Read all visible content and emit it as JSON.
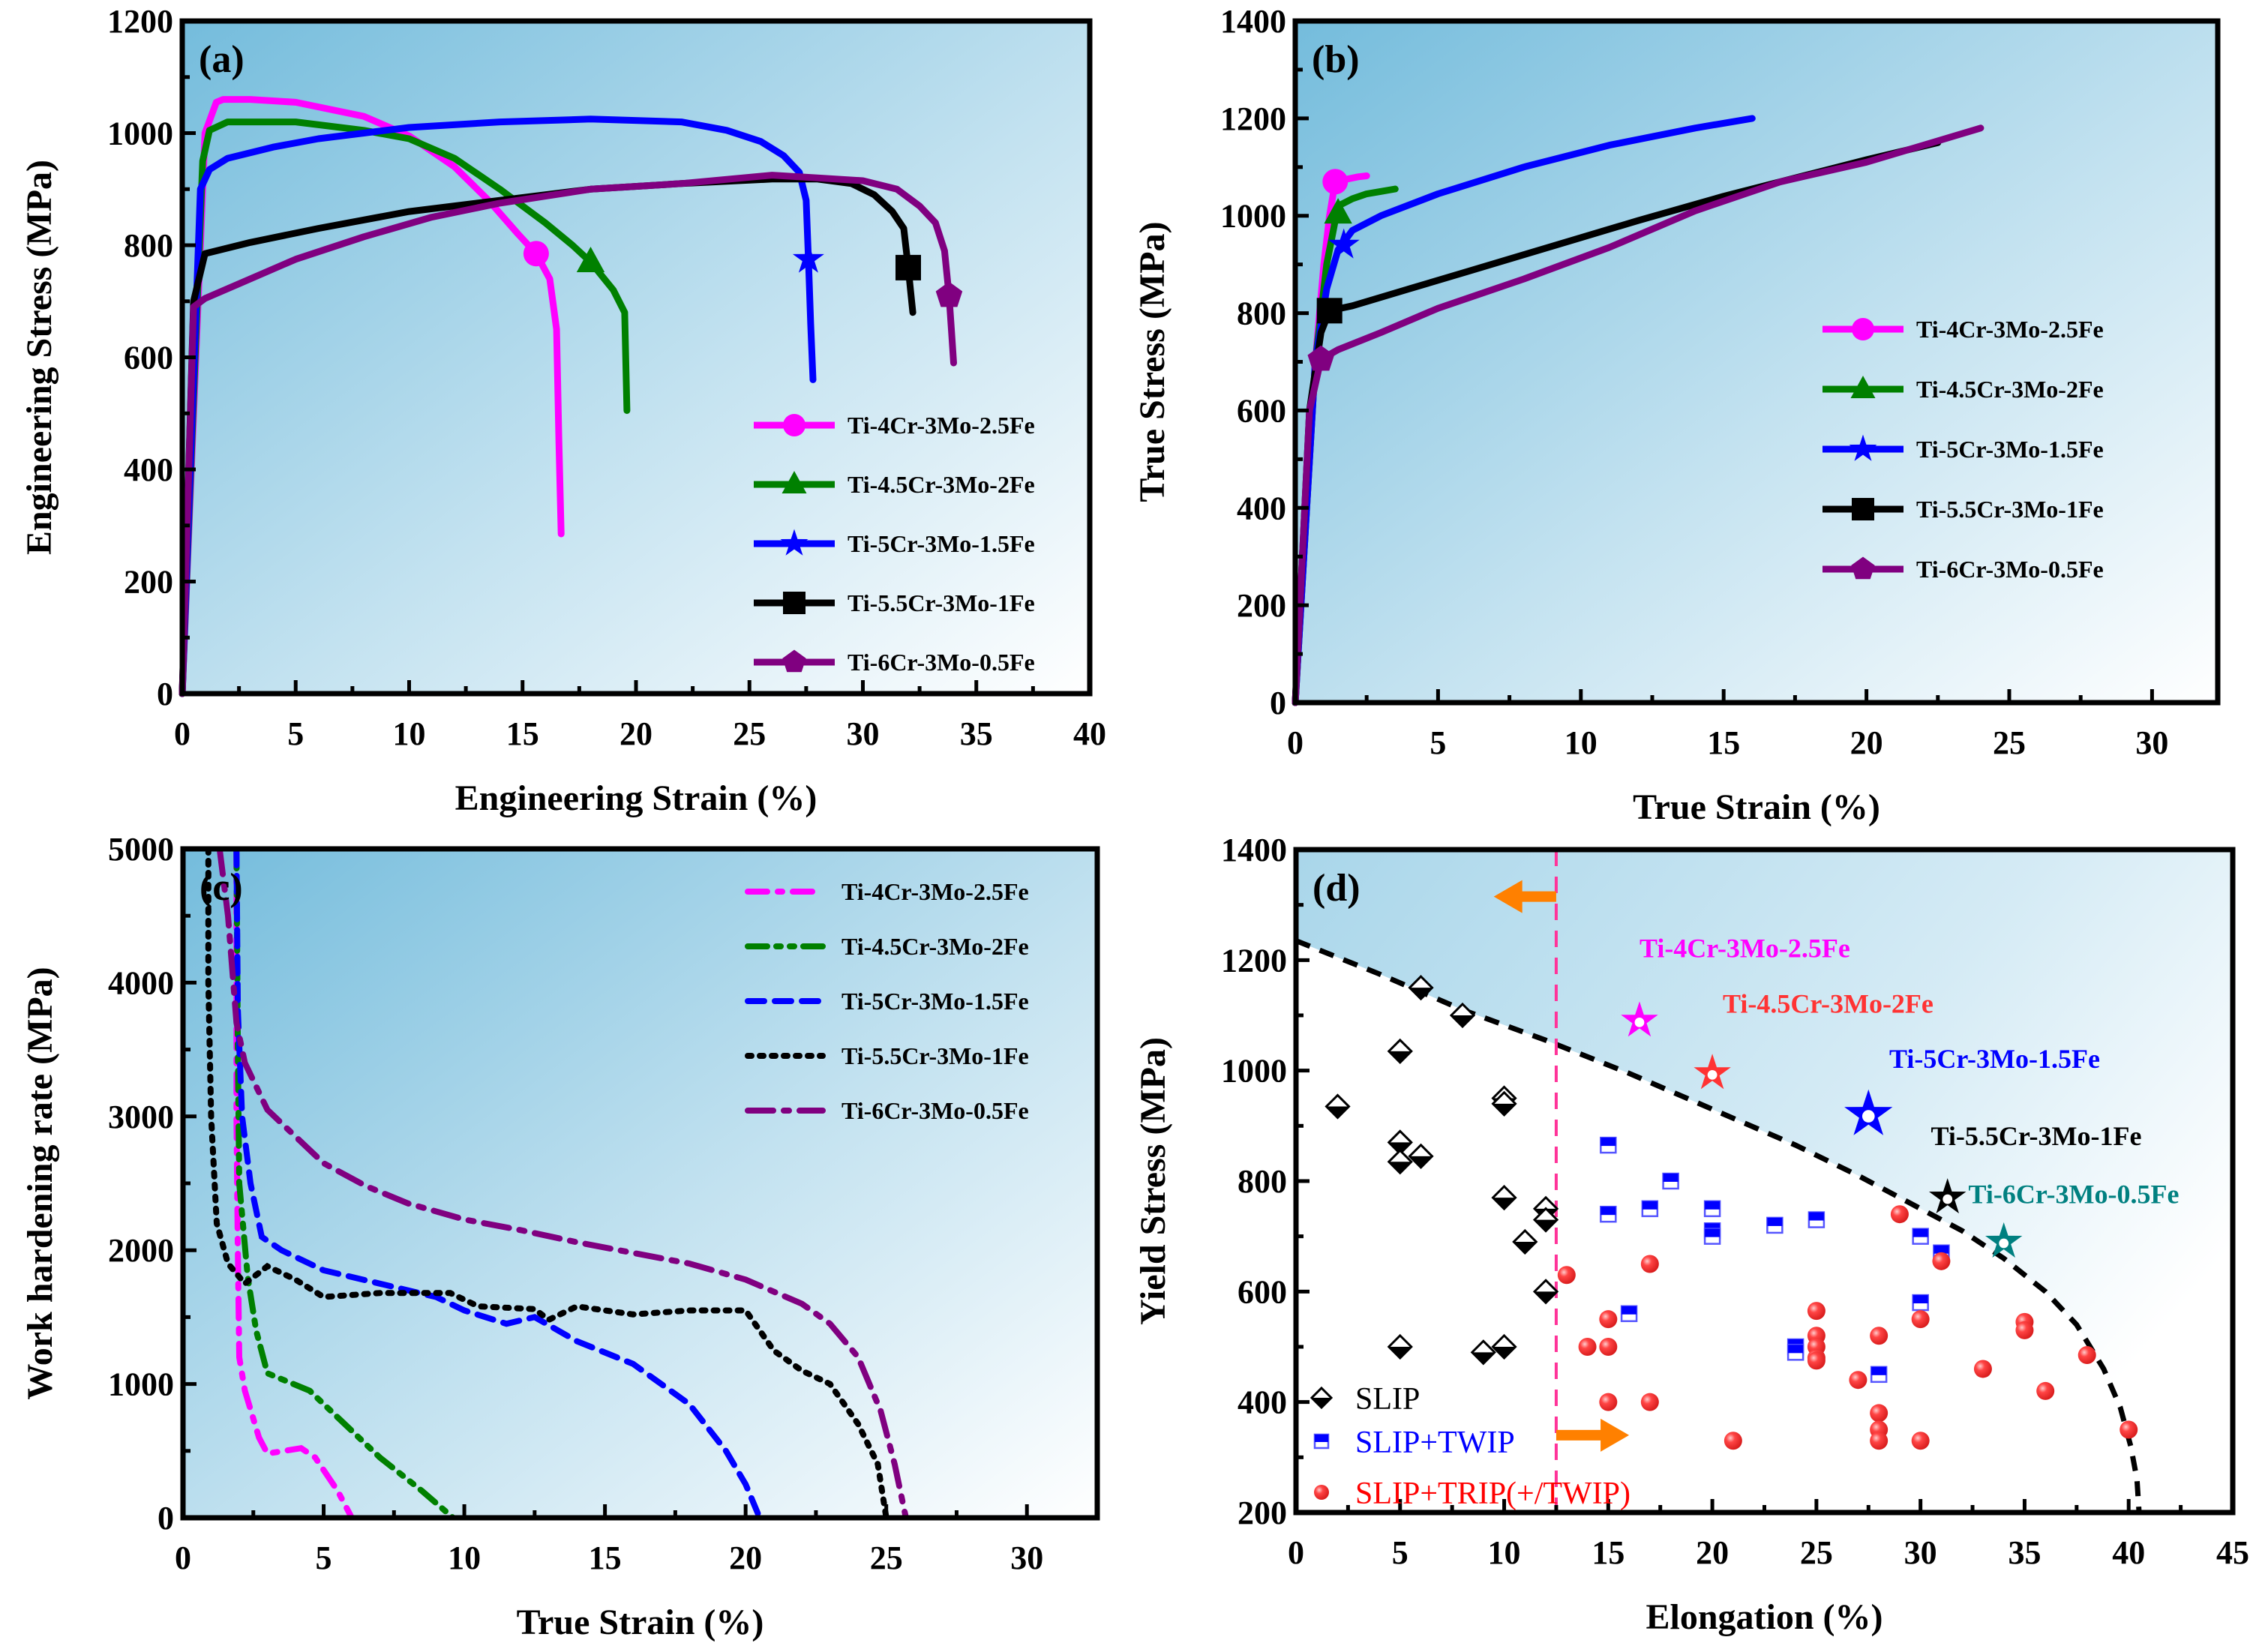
{
  "figure": {
    "colors": {
      "Ti-4Cr-3Mo-2.5Fe": "#ff00ff",
      "Ti-4.5Cr-3Mo-2Fe": "#008000",
      "Ti-5Cr-3Mo-1.5Fe": "#0000ff",
      "Ti-5.5Cr-3Mo-1Fe": "#000000",
      "Ti-6Cr-3Mo-0.5Fe": "#800080",
      "bg_dark": "#7bbfdc",
      "bg_light": "#ffffff",
      "slip": "#000000",
      "slip_twip": "#0000ff",
      "slip_trip": "#ff3333",
      "arrow": "#ff8000",
      "vline": "#ff3399"
    }
  },
  "chart_data": [
    {
      "id": "a",
      "panel_label": "(a)",
      "type": "line",
      "title": "",
      "xlabel": "Engineering Strain (%)",
      "ylabel": "Engineering Stress (MPa)",
      "xlim": [
        0,
        40
      ],
      "ylim": [
        0,
        1200
      ],
      "xticks": [
        0,
        5,
        10,
        15,
        20,
        25,
        30,
        35,
        40
      ],
      "yticks": [
        0,
        200,
        400,
        600,
        800,
        1000,
        1200
      ],
      "grid": false,
      "legend_position": "bottom-right",
      "series": [
        {
          "name": "Ti-4Cr-3Mo-2.5Fe",
          "marker": "circle",
          "marker_at": [
            15.6,
            785
          ],
          "x": [
            0,
            1.0,
            1.5,
            1.8,
            3,
            5,
            8,
            10,
            12,
            13.5,
            14.8,
            15.6,
            16.2,
            16.5,
            16.6,
            16.7
          ],
          "y": [
            0,
            1000,
            1055,
            1060,
            1060,
            1055,
            1030,
            995,
            940,
            880,
            820,
            785,
            740,
            650,
            450,
            285
          ]
        },
        {
          "name": "Ti-4.5Cr-3Mo-2Fe",
          "marker": "triangle",
          "marker_at": [
            18.0,
            770
          ],
          "x": [
            0,
            0.9,
            1.2,
            2.0,
            3,
            5,
            8,
            10,
            12,
            14,
            16,
            17.2,
            18.0,
            19.0,
            19.5,
            19.6
          ],
          "y": [
            0,
            950,
            1005,
            1020,
            1020,
            1020,
            1005,
            990,
            955,
            900,
            840,
            800,
            770,
            720,
            680,
            505
          ]
        },
        {
          "name": "Ti-5Cr-3Mo-1.5Fe",
          "marker": "star",
          "marker_at": [
            27.6,
            775
          ],
          "x": [
            0,
            0.8,
            1.2,
            2,
            4,
            6,
            8,
            10,
            14,
            18,
            22,
            24,
            25.5,
            26.5,
            27.2,
            27.5,
            27.6,
            27.7,
            27.8
          ],
          "y": [
            0,
            900,
            935,
            955,
            975,
            990,
            1000,
            1010,
            1020,
            1025,
            1020,
            1005,
            985,
            960,
            930,
            880,
            775,
            660,
            560
          ]
        },
        {
          "name": "Ti-5.5Cr-3Mo-1Fe",
          "marker": "square",
          "marker_at": [
            32.0,
            760
          ],
          "x": [
            0,
            0.5,
            1.0,
            3,
            6,
            10,
            14,
            18,
            22,
            26,
            28,
            29.5,
            30.5,
            31.3,
            31.8,
            32.0,
            32.1,
            32.2
          ],
          "y": [
            0,
            700,
            785,
            805,
            830,
            860,
            880,
            900,
            910,
            918,
            918,
            910,
            890,
            860,
            830,
            760,
            720,
            680
          ]
        },
        {
          "name": "Ti-6Cr-3Mo-0.5Fe",
          "marker": "pentagon",
          "marker_at": [
            33.8,
            710
          ],
          "x": [
            0,
            0.5,
            1.0,
            3,
            5,
            8,
            11,
            14,
            18,
            22,
            26,
            28,
            30,
            31.5,
            32.5,
            33.2,
            33.6,
            33.8,
            33.9,
            34.0
          ],
          "y": [
            0,
            690,
            705,
            740,
            775,
            815,
            850,
            875,
            900,
            910,
            925,
            920,
            915,
            900,
            870,
            840,
            790,
            710,
            650,
            590
          ]
        }
      ]
    },
    {
      "id": "b",
      "panel_label": "(b)",
      "type": "line",
      "title": "",
      "xlabel": "True Strain (%)",
      "ylabel": "True Stress (MPa)",
      "xlim": [
        0,
        32.3
      ],
      "ylim": [
        0,
        1400
      ],
      "xticks": [
        0,
        5,
        10,
        15,
        20,
        25,
        30
      ],
      "yticks": [
        0,
        200,
        400,
        600,
        800,
        1000,
        1200,
        1400
      ],
      "grid": false,
      "legend_position": "center-right",
      "series": [
        {
          "name": "Ti-4Cr-3Mo-2.5Fe",
          "marker": "circle",
          "marker_at": [
            1.4,
            1070
          ],
          "x": [
            0,
            0.7,
            1.0,
            1.2,
            1.4,
            1.8,
            2.2,
            2.5
          ],
          "y": [
            0,
            700,
            900,
            1000,
            1070,
            1075,
            1080,
            1082
          ]
        },
        {
          "name": "Ti-4.5Cr-3Mo-2Fe",
          "marker": "triangle",
          "marker_at": [
            1.5,
            1005
          ],
          "x": [
            0,
            0.7,
            1.1,
            1.5,
            2.0,
            2.5,
            3.0,
            3.5
          ],
          "y": [
            0,
            700,
            900,
            1020,
            1035,
            1045,
            1050,
            1055
          ]
        },
        {
          "name": "Ti-5Cr-3Mo-1.5Fe",
          "marker": "star",
          "marker_at": [
            1.7,
            940
          ],
          "x": [
            0,
            0.7,
            1.1,
            1.5,
            2.0,
            3.0,
            5.0,
            8.0,
            11,
            14,
            16
          ],
          "y": [
            0,
            700,
            850,
            930,
            970,
            1000,
            1045,
            1100,
            1145,
            1180,
            1200
          ]
        },
        {
          "name": "Ti-5.5Cr-3Mo-1Fe",
          "marker": "square",
          "marker_at": [
            1.2,
            805
          ],
          "x": [
            0,
            0.5,
            0.9,
            1.2,
            2,
            4,
            6,
            8,
            10,
            12,
            15,
            18,
            20,
            22.5
          ],
          "y": [
            0,
            600,
            760,
            805,
            815,
            850,
            885,
            920,
            955,
            990,
            1040,
            1085,
            1115,
            1150
          ]
        },
        {
          "name": "Ti-6Cr-3Mo-0.5Fe",
          "marker": "pentagon",
          "marker_at": [
            0.9,
            705
          ],
          "x": [
            0,
            0.5,
            0.9,
            1.5,
            3,
            5,
            8,
            11,
            14,
            17,
            20,
            22,
            24
          ],
          "y": [
            0,
            600,
            705,
            725,
            760,
            810,
            870,
            935,
            1010,
            1070,
            1110,
            1145,
            1180
          ]
        }
      ]
    },
    {
      "id": "c",
      "panel_label": "(c)",
      "type": "line",
      "title": "",
      "xlabel": "True Strain (%)",
      "ylabel": "Work hardening rate (MPa)",
      "xlim": [
        0,
        32.5
      ],
      "ylim": [
        0,
        5000
      ],
      "xticks": [
        0,
        5,
        10,
        15,
        20,
        25,
        30
      ],
      "yticks": [
        0,
        1000,
        2000,
        3000,
        4000,
        5000
      ],
      "grid": false,
      "legend_position": "top-right",
      "series": [
        {
          "name": "Ti-4Cr-3Mo-2.5Fe",
          "dash": "dash-dot",
          "x": [
            1.9,
            1.9,
            1.95,
            2.0,
            2.2,
            2.7,
            3.0,
            4.2,
            4.7,
            5.5,
            6.0
          ],
          "y": [
            5000,
            3000,
            2000,
            1200,
            950,
            600,
            480,
            520,
            450,
            200,
            0
          ]
        },
        {
          "name": "Ti-4.5Cr-3Mo-2Fe",
          "dash": "dash-dot-dot",
          "x": [
            1.9,
            1.95,
            2.0,
            2.3,
            2.6,
            3.0,
            4.5,
            5.5,
            7,
            8.5,
            9.6
          ],
          "y": [
            5000,
            3500,
            2500,
            1800,
            1400,
            1080,
            950,
            750,
            450,
            200,
            0
          ]
        },
        {
          "name": "Ti-5Cr-3Mo-1.5Fe",
          "dash": "dash",
          "x": [
            1.9,
            1.95,
            2.1,
            2.4,
            2.8,
            3.5,
            5,
            7,
            9,
            10,
            11.5,
            12.5,
            14,
            16,
            18,
            19.3,
            20,
            20.5
          ],
          "y": [
            5000,
            3800,
            3000,
            2500,
            2100,
            2000,
            1850,
            1750,
            1650,
            1550,
            1450,
            1500,
            1320,
            1150,
            850,
            500,
            250,
            0
          ]
        },
        {
          "name": "Ti-5.5Cr-3Mo-1Fe",
          "dash": "dot",
          "x": [
            0.9,
            0.9,
            1.0,
            1.2,
            1.6,
            2.2,
            3.0,
            4,
            5,
            7,
            9.5,
            10.5,
            12.5,
            13,
            14,
            16,
            18,
            20,
            21,
            22,
            23,
            24,
            24.7,
            25.0
          ],
          "y": [
            5000,
            4000,
            3000,
            2200,
            1900,
            1750,
            1880,
            1780,
            1650,
            1680,
            1680,
            1580,
            1560,
            1480,
            1580,
            1520,
            1550,
            1550,
            1250,
            1100,
            1000,
            700,
            400,
            0
          ]
        },
        {
          "name": "Ti-6Cr-3Mo-0.5Fe",
          "dash": "long-dash-dot",
          "x": [
            1.3,
            1.6,
            1.9,
            2.2,
            3.0,
            4.0,
            5.0,
            6.5,
            8,
            10,
            12,
            14,
            16,
            18,
            20,
            22,
            23,
            24,
            24.8,
            25.3,
            25.7
          ],
          "y": [
            5000,
            4500,
            3700,
            3400,
            3050,
            2850,
            2650,
            2480,
            2350,
            2230,
            2150,
            2060,
            1980,
            1900,
            1780,
            1600,
            1450,
            1200,
            800,
            400,
            0
          ]
        }
      ]
    },
    {
      "id": "d",
      "panel_label": "(d)",
      "type": "scatter",
      "title": "",
      "xlabel": "Elongation (%)",
      "ylabel": "Yield Stress (MPa)",
      "xlim": [
        0,
        45
      ],
      "ylim": [
        200,
        1400
      ],
      "xticks": [
        0,
        5,
        10,
        15,
        20,
        25,
        30,
        35,
        40,
        45
      ],
      "yticks": [
        200,
        400,
        600,
        800,
        1000,
        1200,
        1400
      ],
      "grid": false,
      "legend_position": "bottom-left",
      "boundary_curve": {
        "style": "dashed",
        "x": [
          0,
          4,
          8,
          12,
          16,
          20,
          24,
          27,
          30,
          32,
          34,
          36,
          37.5,
          38.8,
          39.6,
          40.1,
          40.4,
          40.5
        ],
        "y": [
          1235,
          1175,
          1110,
          1055,
          995,
          930,
          865,
          810,
          750,
          710,
          660,
          600,
          540,
          460,
          390,
          320,
          260,
          200
        ]
      },
      "vertical_line": {
        "x": 12.5,
        "style": "dashed"
      },
      "arrows": [
        {
          "direction": "left",
          "x_from": 12.5,
          "x_to": 9.5,
          "y": 1315
        },
        {
          "direction": "right",
          "x_from": 12.5,
          "x_to": 16,
          "y": 340
        }
      ],
      "series": [
        {
          "name": "SLIP",
          "marker": "diamond-half",
          "x": [
            2,
            5,
            5,
            5,
            5,
            6,
            6,
            8,
            9,
            10,
            10,
            10,
            10,
            11,
            12,
            12,
            12
          ],
          "y": [
            935,
            1035,
            870,
            835,
            500,
            1150,
            845,
            1100,
            490,
            950,
            940,
            770,
            500,
            690,
            750,
            730,
            600
          ]
        },
        {
          "name": "SLIP+TWIP",
          "marker": "square-half",
          "x": [
            15,
            15,
            16,
            17,
            18,
            20,
            20,
            20,
            23,
            24,
            24,
            25,
            28,
            30,
            30,
            31
          ],
          "y": [
            865,
            740,
            560,
            750,
            800,
            750,
            710,
            700,
            720,
            500,
            490,
            730,
            450,
            700,
            580,
            670
          ]
        },
        {
          "name": "SLIP+TRIP(+/TWIP)",
          "marker": "sphere",
          "x": [
            13,
            14,
            15,
            15,
            15,
            17,
            17,
            21,
            25,
            25,
            25,
            25,
            25,
            27,
            28,
            28,
            28,
            28,
            29,
            30,
            30,
            31,
            33,
            35,
            35,
            36,
            38,
            40
          ],
          "y": [
            630,
            500,
            550,
            500,
            400,
            650,
            400,
            330,
            565,
            520,
            500,
            480,
            475,
            440,
            520,
            380,
            350,
            330,
            740,
            550,
            330,
            655,
            460,
            545,
            530,
            420,
            485,
            350
          ]
        }
      ],
      "highlighted_alloys": [
        {
          "name": "Ti-4Cr-3Mo-2.5Fe",
          "x": 16.5,
          "y": 1090,
          "color": "#ff00ff",
          "label_x": 16.5,
          "label_y": 1205
        },
        {
          "name": "Ti-4.5Cr-3Mo-2Fe",
          "x": 20.0,
          "y": 995,
          "color": "#ff3333",
          "label_x": 20.5,
          "label_y": 1105
        },
        {
          "name": "Ti-5Cr-3Mo-1.5Fe",
          "x": 27.5,
          "y": 920,
          "color": "#0000ff",
          "label_x": 28.5,
          "label_y": 1005
        },
        {
          "name": "Ti-5.5Cr-3Mo-1Fe",
          "x": 31.3,
          "y": 770,
          "color": "#000000",
          "label_x": 30.5,
          "label_y": 865
        },
        {
          "name": "Ti-6Cr-3Mo-0.5Fe",
          "x": 34.0,
          "y": 690,
          "color": "#008080",
          "label_x": 32.3,
          "label_y": 760
        }
      ]
    }
  ]
}
